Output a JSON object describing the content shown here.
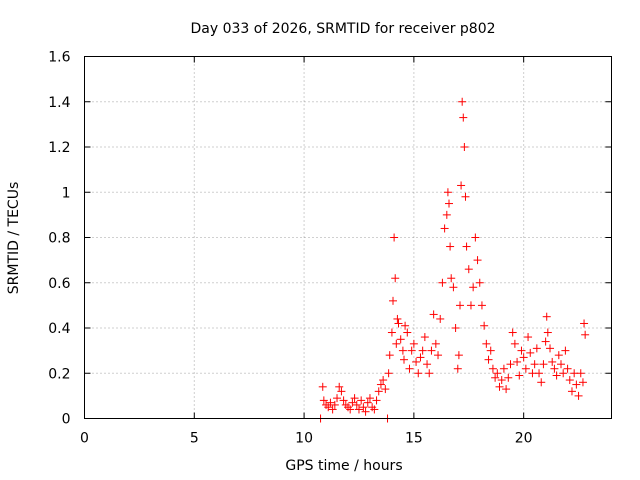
{
  "chart_data": {
    "type": "scatter",
    "title": "Day 033 of 2026, SRMTID for receiver p802",
    "xlabel": "GPS time / hours",
    "ylabel": "SRMTID / TECUs",
    "xlim": [
      0,
      24
    ],
    "ylim": [
      0,
      1.6
    ],
    "xticks": [
      0,
      5,
      10,
      15,
      20
    ],
    "xtick_labels": [
      "0",
      "5",
      "10",
      "15",
      "20"
    ],
    "yticks": [
      0,
      0.2,
      0.4,
      0.6,
      0.8,
      1.0,
      1.2,
      1.4,
      1.6
    ],
    "ytick_labels": [
      "0",
      "0.2",
      "0.4",
      "0.6",
      "0.8",
      "1",
      "1.2",
      "1.4",
      "1.6"
    ],
    "grid": true,
    "marker": "plus",
    "color": "#ff0000",
    "series": [
      {
        "name": "SRMTID",
        "x": [
          10.75,
          10.85,
          10.9,
          11.0,
          11.1,
          11.2,
          11.3,
          11.4,
          11.5,
          11.6,
          11.7,
          11.8,
          11.9,
          12.0,
          12.1,
          12.2,
          12.3,
          12.4,
          12.5,
          12.6,
          12.7,
          12.8,
          12.9,
          13.0,
          13.1,
          13.2,
          13.3,
          13.4,
          13.5,
          13.6,
          13.7,
          13.8,
          13.85,
          13.9,
          14.0,
          14.05,
          14.1,
          14.15,
          14.2,
          14.25,
          14.3,
          14.4,
          14.5,
          14.55,
          14.6,
          14.7,
          14.8,
          14.9,
          15.0,
          15.1,
          15.2,
          15.3,
          15.4,
          15.5,
          15.6,
          15.7,
          15.8,
          15.9,
          16.0,
          16.1,
          16.2,
          16.3,
          16.4,
          16.5,
          16.55,
          16.6,
          16.65,
          16.7,
          16.8,
          16.9,
          17.0,
          17.05,
          17.1,
          17.15,
          17.2,
          17.25,
          17.3,
          17.35,
          17.4,
          17.5,
          17.6,
          17.7,
          17.8,
          17.9,
          18.0,
          18.1,
          18.2,
          18.3,
          18.4,
          18.5,
          18.6,
          18.7,
          18.8,
          18.9,
          19.0,
          19.1,
          19.2,
          19.3,
          19.4,
          19.5,
          19.6,
          19.7,
          19.8,
          19.9,
          20.0,
          20.1,
          20.2,
          20.3,
          20.4,
          20.5,
          20.6,
          20.7,
          20.8,
          20.9,
          21.0,
          21.05,
          21.1,
          21.2,
          21.3,
          21.4,
          21.5,
          21.6,
          21.7,
          21.8,
          21.9,
          22.0,
          22.1,
          22.2,
          22.3,
          22.4,
          22.5,
          22.6,
          22.7,
          22.75,
          22.8
        ],
        "y": [
          0.0,
          0.14,
          0.08,
          0.06,
          0.05,
          0.07,
          0.04,
          0.06,
          0.09,
          0.14,
          0.12,
          0.08,
          0.06,
          0.05,
          0.04,
          0.07,
          0.09,
          0.06,
          0.04,
          0.08,
          0.05,
          0.03,
          0.07,
          0.09,
          0.05,
          0.04,
          0.08,
          0.12,
          0.15,
          0.17,
          0.13,
          0.0,
          0.2,
          0.28,
          0.38,
          0.52,
          0.8,
          0.62,
          0.33,
          0.44,
          0.42,
          0.35,
          0.3,
          0.26,
          0.41,
          0.38,
          0.22,
          0.3,
          0.33,
          0.25,
          0.2,
          0.27,
          0.3,
          0.36,
          0.24,
          0.2,
          0.3,
          0.46,
          0.33,
          0.28,
          0.44,
          0.6,
          0.84,
          0.9,
          1.0,
          0.95,
          0.76,
          0.62,
          0.58,
          0.4,
          0.22,
          0.28,
          0.5,
          1.03,
          1.4,
          1.33,
          1.2,
          0.98,
          0.76,
          0.66,
          0.5,
          0.58,
          0.8,
          0.7,
          0.6,
          0.5,
          0.41,
          0.33,
          0.26,
          0.3,
          0.22,
          0.18,
          0.2,
          0.14,
          0.17,
          0.22,
          0.13,
          0.18,
          0.24,
          0.38,
          0.33,
          0.25,
          0.19,
          0.3,
          0.27,
          0.22,
          0.36,
          0.29,
          0.2,
          0.24,
          0.31,
          0.2,
          0.16,
          0.24,
          0.34,
          0.45,
          0.38,
          0.31,
          0.25,
          0.22,
          0.19,
          0.28,
          0.24,
          0.2,
          0.3,
          0.22,
          0.17,
          0.12,
          0.2,
          0.15,
          0.1,
          0.2,
          0.16,
          0.42,
          0.37
        ]
      }
    ]
  }
}
